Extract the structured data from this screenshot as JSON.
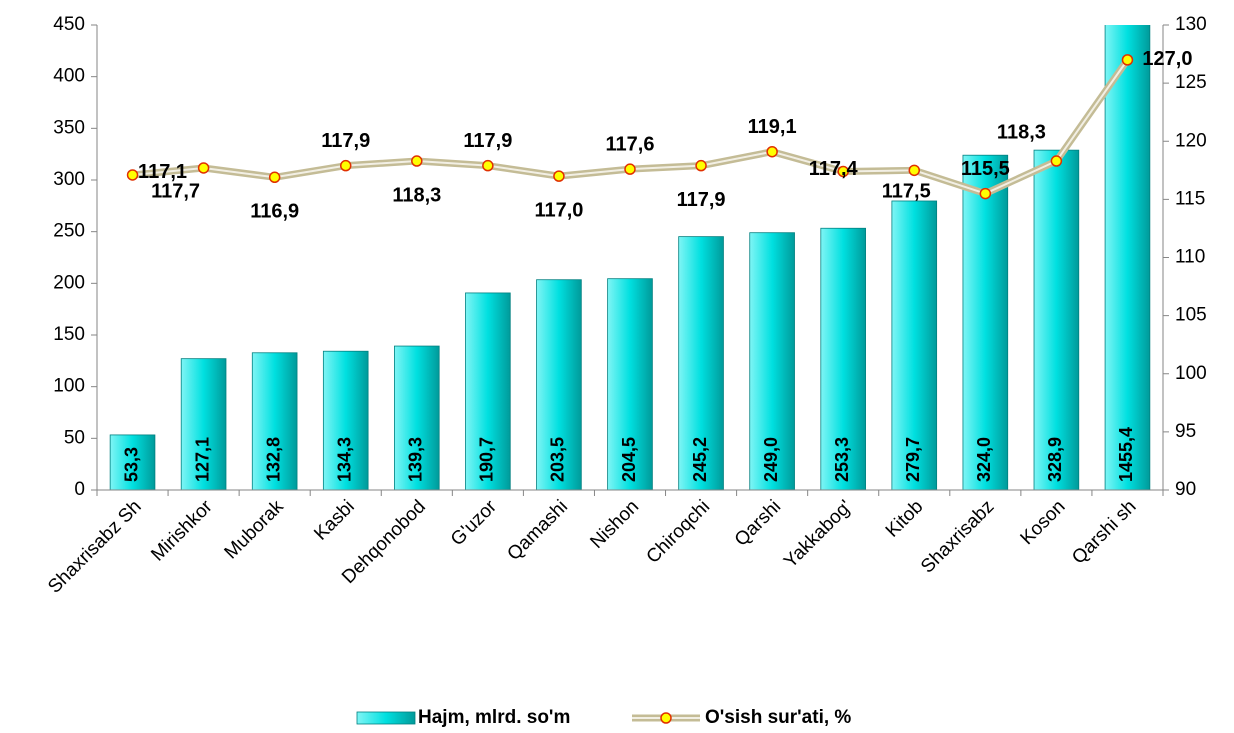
{
  "chart_data": {
    "type": "bar_line",
    "categories": [
      "Shaxrisabz Sh",
      "Mirishkor",
      "Muborak",
      "Kasbi",
      "Dehqonobod",
      "G'uzor",
      "Qamashi",
      "Nishon",
      "Chiroqchi",
      "Qarshi",
      "Yakkabog'",
      "Kitob",
      "Shaxrisabz",
      "Koson",
      "Qarshi sh"
    ],
    "series": [
      {
        "name": "Hajm, mlrd. so'm",
        "type": "bar",
        "color": "#00e5e5",
        "values": [
          53.3,
          127.1,
          132.8,
          134.3,
          139.3,
          190.7,
          203.5,
          204.5,
          245.2,
          249.0,
          253.3,
          279.7,
          324.0,
          328.9,
          1455.4
        ],
        "value_labels": [
          "53,3",
          "127,1",
          "132,8",
          "134,3",
          "139,3",
          "190,7",
          "203,5",
          "204,5",
          "245,2",
          "249,0",
          "253,3",
          "279,7",
          "324,0",
          "328,9",
          "1455,4"
        ]
      },
      {
        "name": "O'sish sur'ati, %",
        "type": "line",
        "axis": "y2",
        "color": "#c4bc96",
        "marker_color": "#ffff00",
        "values": [
          117.1,
          117.7,
          116.9,
          117.9,
          118.3,
          117.9,
          117.0,
          117.6,
          117.9,
          119.1,
          117.4,
          117.5,
          115.5,
          118.3,
          127.0
        ],
        "value_labels": [
          "117,1",
          "117,7",
          "116,9",
          "117,9",
          "118,3",
          "117,9",
          "117,0",
          "117,6",
          "117,9",
          "119,1",
          "117,4",
          "117,5",
          "115,5",
          "118,3",
          "127,0"
        ]
      }
    ],
    "ylim": [
      0,
      450
    ],
    "yticks": [
      0,
      50,
      100,
      150,
      200,
      250,
      300,
      350,
      400,
      450
    ],
    "y2lim": [
      90,
      130
    ],
    "y2ticks": [
      90,
      95,
      100,
      105,
      110,
      115,
      120,
      125,
      130
    ],
    "legend": "bottom"
  }
}
